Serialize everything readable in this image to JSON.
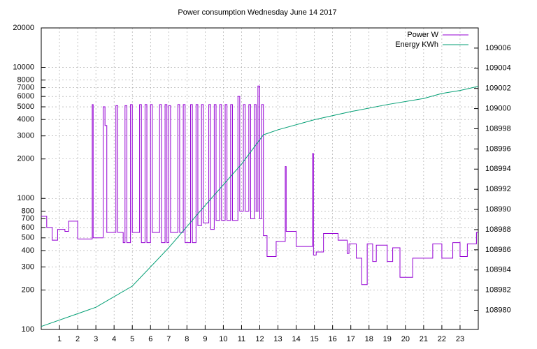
{
  "chart_data": {
    "type": "line",
    "title": "Power consumption Wednesday June 14 2017",
    "xlim": [
      0,
      24
    ],
    "xticks": [
      1,
      2,
      3,
      4,
      5,
      6,
      7,
      8,
      9,
      10,
      11,
      12,
      13,
      14,
      15,
      16,
      17,
      18,
      19,
      20,
      21,
      22,
      23
    ],
    "ylim": [
      100,
      20000
    ],
    "yscale": "log",
    "yticks": [
      100,
      200,
      300,
      400,
      500,
      600,
      700,
      800,
      1000,
      2000,
      3000,
      4000,
      5000,
      6000,
      7000,
      8000,
      10000,
      20000
    ],
    "y2lim": [
      108978.1,
      109008
    ],
    "y2ticks": [
      108980,
      108982,
      108984,
      108986,
      108988,
      108990,
      108992,
      108994,
      108996,
      108998,
      109000,
      109002,
      109004,
      109006
    ],
    "grid": true,
    "legend": "top-right",
    "series": [
      {
        "name": "Power W",
        "color": "#9400d3",
        "style": "steps",
        "x": [
          0,
          0.3,
          0.6,
          0.9,
          1.3,
          1.5,
          2.0,
          2.8,
          2.85,
          3.4,
          3.5,
          3.6,
          4.1,
          4.2,
          4.5,
          4.6,
          4.7,
          4.9,
          5.0,
          5.4,
          5.5,
          5.7,
          5.8,
          6.0,
          6.1,
          6.5,
          6.6,
          6.8,
          6.9,
          7.0,
          7.1,
          7.5,
          7.6,
          7.8,
          7.9,
          8.2,
          8.3,
          8.5,
          8.6,
          8.8,
          8.9,
          9.2,
          9.3,
          9.5,
          9.6,
          9.8,
          9.9,
          10.1,
          10.2,
          10.4,
          10.5,
          10.8,
          10.9,
          11.1,
          11.2,
          11.4,
          11.5,
          11.7,
          11.8,
          11.9,
          12.0,
          12.1,
          12.2,
          12.4,
          12.9,
          13.4,
          13.45,
          14.0,
          14.9,
          14.95,
          15.1,
          15.5,
          16.3,
          16.8,
          16.9,
          17.3,
          17.6,
          17.9,
          18.2,
          18.4,
          19.0,
          19.3,
          19.7,
          20.4,
          21.5,
          22.0,
          22.6,
          23.0,
          23.4,
          23.9
        ],
        "values": [
          730,
          600,
          480,
          580,
          560,
          670,
          490,
          5200,
          500,
          5000,
          3600,
          550,
          5100,
          550,
          460,
          5100,
          460,
          5200,
          550,
          5200,
          460,
          5200,
          460,
          5200,
          550,
          5200,
          460,
          5200,
          460,
          5100,
          550,
          5200,
          550,
          5200,
          460,
          5200,
          460,
          5200,
          620,
          5200,
          650,
          5200,
          580,
          5200,
          680,
          5200,
          680,
          5200,
          680,
          5200,
          680,
          6000,
          800,
          5200,
          800,
          5200,
          700,
          5200,
          800,
          7200,
          700,
          5200,
          520,
          360,
          470,
          1750,
          560,
          430,
          2200,
          370,
          390,
          540,
          480,
          380,
          450,
          350,
          220,
          450,
          330,
          440,
          330,
          420,
          250,
          350,
          450,
          350,
          460,
          360,
          450,
          550
        ]
      },
      {
        "name": "Energy KWh",
        "color": "#009e73",
        "axis": "y2",
        "x": [
          0,
          3,
          5,
          7,
          9,
          11,
          12.2,
          13,
          15,
          17,
          19,
          21,
          22,
          23,
          24
        ],
        "values": [
          108978.4,
          108980.3,
          108982.4,
          108986.2,
          108990.4,
          108994.5,
          108997.4,
          108997.9,
          108998.9,
          108999.7,
          109000.4,
          109001.0,
          109001.5,
          109001.8,
          109002.2
        ]
      }
    ]
  }
}
